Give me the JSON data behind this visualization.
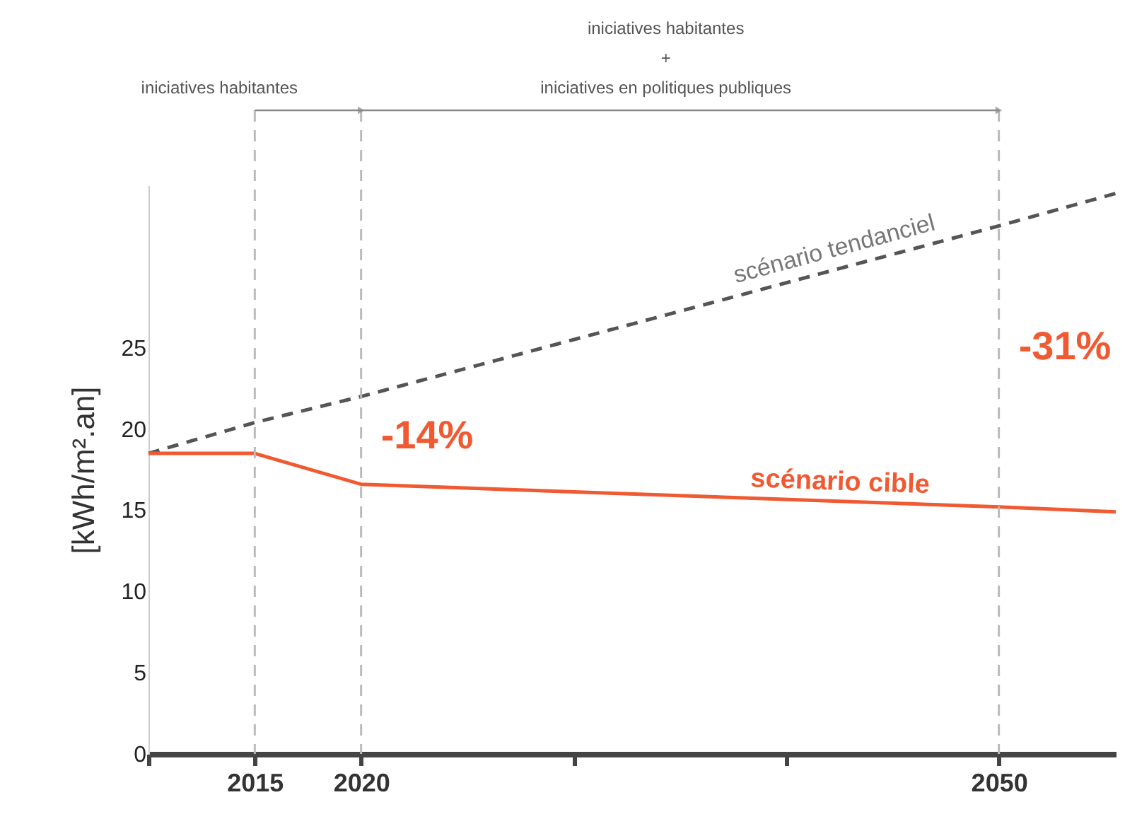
{
  "chart_data": {
    "type": "line",
    "ylabel": "[kWh/m².an]",
    "x": [
      2010,
      2015,
      2020,
      2050,
      2055.5
    ],
    "series": [
      {
        "name": "scénario tendanciel",
        "color": "#555555",
        "line_style": "dashed",
        "values": [
          18.5,
          20.4,
          22.0,
          32.5,
          34.5
        ]
      },
      {
        "name": "scénario cible",
        "color": "#f05a32",
        "line_style": "solid",
        "values": [
          18.5,
          18.5,
          16.6,
          15.2,
          14.9
        ]
      }
    ],
    "xlim": [
      2010,
      2055.5
    ],
    "xticks": [
      {
        "value": 2010,
        "label": null
      },
      2015,
      2020,
      {
        "value": 2030,
        "label": null
      },
      {
        "value": 2040,
        "label": null
      },
      2050
    ],
    "ylim": [
      0,
      35
    ],
    "yticks": [
      0,
      5,
      10,
      15,
      20,
      25
    ],
    "ref_lines": [
      {
        "axis": "x",
        "value": 2015,
        "label": null,
        "color": "#bbbbbb",
        "line_style": "dashed"
      },
      {
        "axis": "x",
        "value": 2020,
        "label": null,
        "color": "#bbbbbb",
        "line_style": "dashed"
      },
      {
        "axis": "x",
        "value": 2050,
        "label": null,
        "color": "#bbbbbb",
        "line_style": "dashed"
      }
    ],
    "annotations": [
      "iniciatives habitantes",
      "iniciatives habitantes\n+\niniciatives en politiques publiques",
      {
        "text": "-14%",
        "x": 2020,
        "y": 19.5
      },
      {
        "text": "-31%",
        "x": 2050,
        "y": 25
      }
    ],
    "legend": false,
    "grid": false,
    "marker": "none"
  }
}
